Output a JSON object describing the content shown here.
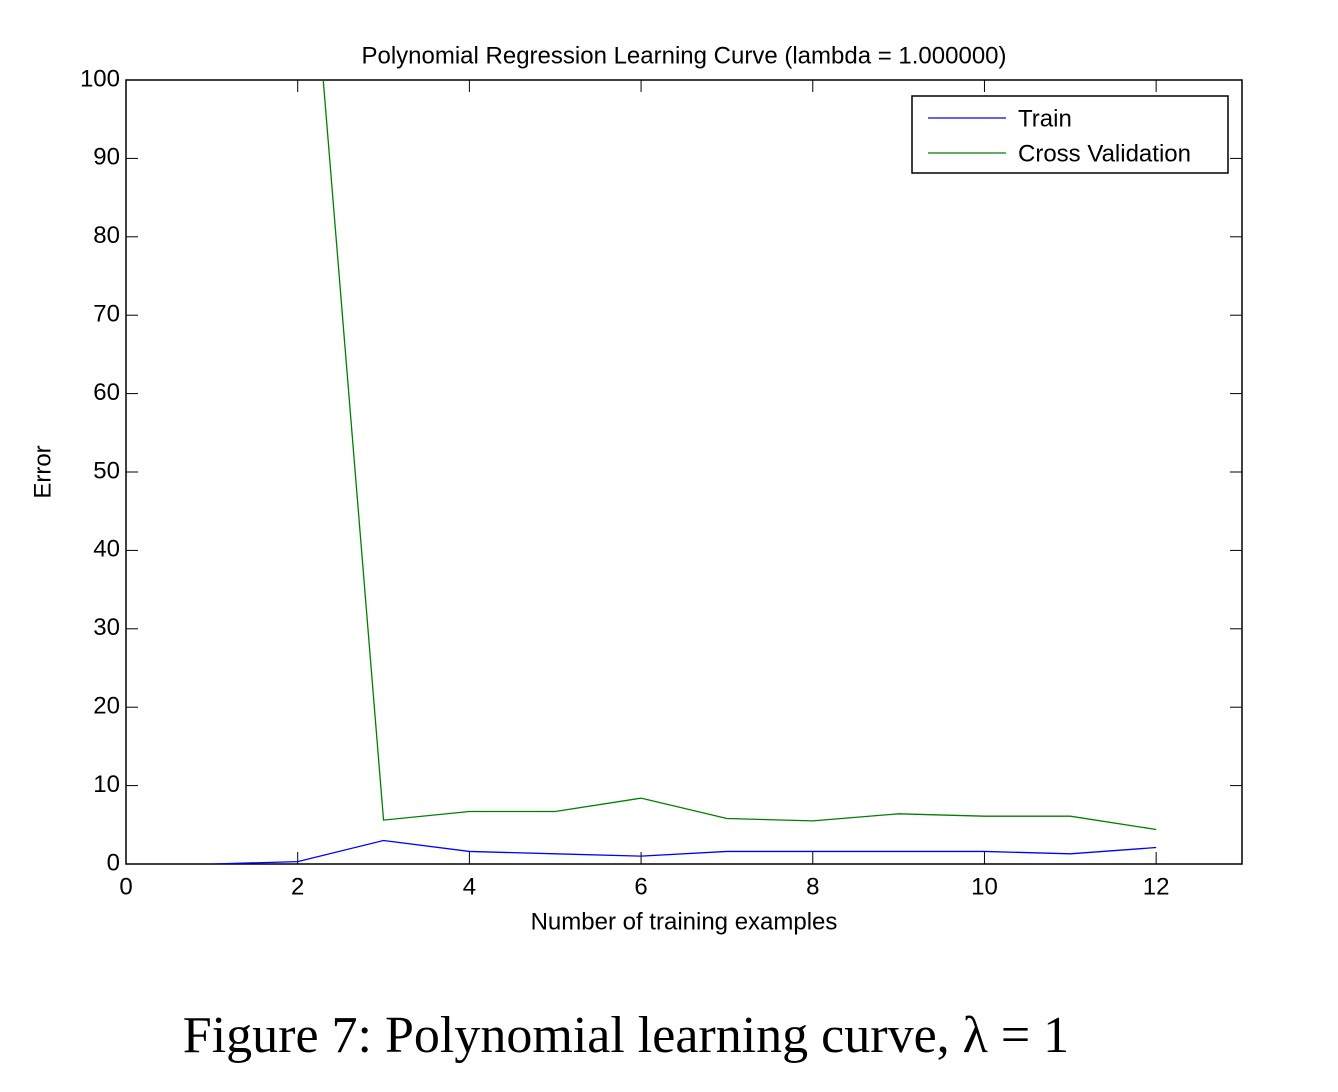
{
  "chart_data": {
    "type": "line",
    "title": "Polynomial Regression Learning Curve (lambda = 1.000000)",
    "x_label": "Number of training examples",
    "y_label": "Error",
    "x": [
      1,
      2,
      3,
      4,
      5,
      6,
      7,
      8,
      9,
      10,
      11,
      12
    ],
    "series": [
      {
        "name": "Train",
        "color": "#0000ff",
        "values": [
          0,
          0.3,
          3.0,
          1.6,
          1.3,
          1.0,
          1.6,
          1.6,
          1.6,
          1.6,
          1.3,
          2.1
        ]
      },
      {
        "name": "Cross Validation",
        "color": "#007f00",
        "values": [
          null,
          140,
          5.6,
          6.7,
          6.7,
          8.4,
          5.8,
          5.5,
          6.4,
          6.1,
          6.1,
          4.4
        ]
      }
    ],
    "xlim": [
      0,
      13
    ],
    "xticks": [
      0,
      2,
      4,
      6,
      8,
      10,
      12
    ],
    "ylim": [
      0,
      100
    ],
    "yticks": [
      0,
      10,
      20,
      30,
      40,
      50,
      60,
      70,
      80,
      90,
      100
    ],
    "grid": false,
    "legend": "upper right"
  },
  "caption": "Figure 7: Polynomial learning curve, λ = 1"
}
